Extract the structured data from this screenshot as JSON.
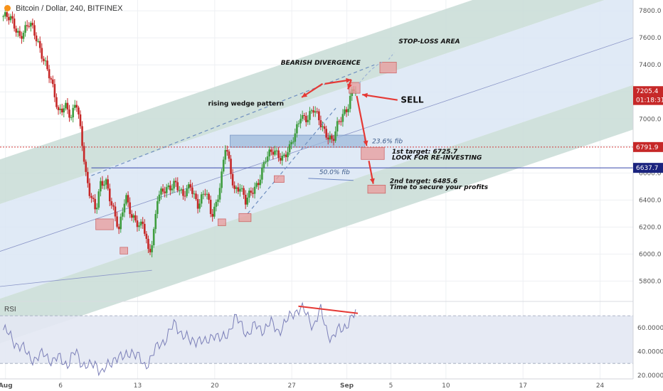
{
  "header": {
    "title": "Bitcoin / Dollar, 240, BITFINEX"
  },
  "colors": {
    "up": "#3f9d3f",
    "down": "#c62828",
    "channel_outer": "#c8dcd6",
    "channel_inner": "#dbe6f5",
    "annotation_red": "#e53935",
    "box_red": "#e8a0a0",
    "fib_box": "#9fbadc",
    "rsi_line": "#7b7fb8",
    "rsi_band": "#e3e8f3"
  },
  "chart_data": {
    "type": "candlestick",
    "x_ticks": [
      "Aug",
      "6",
      "13",
      "20",
      "27",
      "Sep",
      "5",
      "10",
      "17",
      "24"
    ],
    "x_tick_days": [
      1,
      6,
      13,
      20,
      27,
      32,
      36,
      41,
      48,
      55
    ],
    "xlim": [
      0.5,
      58
    ],
    "y_ticks": [
      5800,
      6000,
      6200,
      6400,
      6600,
      6800,
      7000,
      7200,
      7400,
      7600,
      7800
    ],
    "y_tick_labels": [
      "5800.0",
      "6000.0",
      "6200.0",
      "6400.0",
      "6600.0",
      "6800.0",
      "7000.0",
      "7200.0",
      "7400.0",
      "7600.0",
      "7800.0"
    ],
    "ylim": [
      5660,
      7880
    ],
    "price_labels": [
      {
        "value": 7205.4,
        "text": "7205.4",
        "color": "#c62828"
      },
      {
        "value": 7140,
        "text": "01:18:31",
        "color": "#c62828"
      },
      {
        "value": 6791.9,
        "text": "6791.9",
        "color": "#c62828"
      },
      {
        "value": 6637.7,
        "text": "6637.7",
        "color": "#1a237e"
      }
    ],
    "close_path": [
      [
        0.8,
        7760
      ],
      [
        1.5,
        7730
      ],
      [
        2.3,
        7620
      ],
      [
        3.2,
        7700
      ],
      [
        3.9,
        7580
      ],
      [
        4.6,
        7420
      ],
      [
        5.1,
        7280
      ],
      [
        5.8,
        7050
      ],
      [
        6.4,
        7120
      ],
      [
        7.0,
        6990
      ],
      [
        7.4,
        7130
      ],
      [
        7.9,
        6880
      ],
      [
        8.3,
        6600
      ],
      [
        8.6,
        6470
      ],
      [
        9.2,
        6300
      ],
      [
        9.6,
        6510
      ],
      [
        10.1,
        6560
      ],
      [
        10.6,
        6380
      ],
      [
        11.3,
        6160
      ],
      [
        11.9,
        6450
      ],
      [
        12.5,
        6280
      ],
      [
        13.2,
        6180
      ],
      [
        13.5,
        6230
      ],
      [
        14.0,
        6020
      ],
      [
        14.4,
        6120
      ],
      [
        14.8,
        6410
      ],
      [
        15.6,
        6480
      ],
      [
        16.4,
        6540
      ],
      [
        17.1,
        6410
      ],
      [
        17.8,
        6520
      ],
      [
        18.5,
        6360
      ],
      [
        19.2,
        6460
      ],
      [
        19.7,
        6290
      ],
      [
        20.2,
        6400
      ],
      [
        20.6,
        6560
      ],
      [
        21.0,
        6800
      ],
      [
        21.4,
        6620
      ],
      [
        21.8,
        6480
      ],
      [
        22.3,
        6510
      ],
      [
        22.8,
        6380
      ],
      [
        23.4,
        6460
      ],
      [
        23.9,
        6530
      ],
      [
        24.6,
        6700
      ],
      [
        25.4,
        6760
      ],
      [
        26.2,
        6720
      ],
      [
        26.8,
        6770
      ],
      [
        27.3,
        6880
      ],
      [
        27.8,
        7040
      ],
      [
        28.4,
        7000
      ],
      [
        29.0,
        7060
      ],
      [
        29.6,
        6980
      ],
      [
        30.1,
        6900
      ],
      [
        30.7,
        6820
      ],
      [
        31.2,
        6960
      ],
      [
        31.7,
        7050
      ],
      [
        32.1,
        7100
      ],
      [
        32.5,
        7210
      ],
      [
        32.8,
        7205.4
      ]
    ],
    "rsi": {
      "label": "RSI",
      "y_ticks": [
        20,
        40,
        60
      ],
      "y_tick_labels": [
        "20.0000",
        "40.0000",
        "60.0000"
      ],
      "ylim": [
        17,
        82
      ],
      "overbought": 70,
      "oversold": 30,
      "values": [
        [
          0.8,
          58
        ],
        [
          1.5,
          52
        ],
        [
          2.2,
          45
        ],
        [
          3.0,
          38
        ],
        [
          3.8,
          33
        ],
        [
          4.6,
          39
        ],
        [
          5.3,
          31
        ],
        [
          6.0,
          35
        ],
        [
          6.7,
          29
        ],
        [
          7.4,
          40
        ],
        [
          8.0,
          30
        ],
        [
          8.6,
          26
        ],
        [
          9.2,
          31
        ],
        [
          9.8,
          22
        ],
        [
          10.4,
          28
        ],
        [
          11.0,
          37
        ],
        [
          11.7,
          33
        ],
        [
          12.4,
          42
        ],
        [
          13.0,
          35
        ],
        [
          13.6,
          28
        ],
        [
          14.3,
          36
        ],
        [
          15.0,
          46
        ],
        [
          15.7,
          53
        ],
        [
          16.4,
          63
        ],
        [
          17.1,
          55
        ],
        [
          17.8,
          47
        ],
        [
          18.5,
          52
        ],
        [
          19.2,
          45
        ],
        [
          19.9,
          57
        ],
        [
          20.6,
          48
        ],
        [
          21.2,
          56
        ],
        [
          21.8,
          68
        ],
        [
          22.4,
          62
        ],
        [
          23.0,
          55
        ],
        [
          23.7,
          61
        ],
        [
          24.4,
          59
        ],
        [
          25.1,
          63
        ],
        [
          25.8,
          58
        ],
        [
          26.5,
          64
        ],
        [
          27.2,
          74
        ],
        [
          27.8,
          76
        ],
        [
          28.4,
          70
        ],
        [
          29.0,
          62
        ],
        [
          29.6,
          74
        ],
        [
          30.2,
          58
        ],
        [
          30.7,
          50
        ],
        [
          31.2,
          57
        ],
        [
          31.8,
          62
        ],
        [
          32.4,
          66
        ],
        [
          32.8,
          72
        ]
      ],
      "divergence_line": [
        [
          27.6,
          78
        ],
        [
          33.0,
          72
        ]
      ]
    },
    "annotations": [
      {
        "text": "STOP-LOSS AREA",
        "style": "italic-bold",
        "color": "#111111"
      },
      {
        "text": "BEARISH DIVERGENCE",
        "style": "italic-bold",
        "color": "#111111"
      },
      {
        "text": "rising wedge pattern",
        "style": "bold",
        "color": "#111111"
      },
      {
        "text": "SELL",
        "style": "bold",
        "color": "#111111"
      },
      {
        "text": "23.6% fib",
        "style": "italic",
        "color": "#3b5a8a"
      },
      {
        "text": "50.0% fib",
        "style": "italic",
        "color": "#3b5a8a"
      },
      {
        "text": "1st target: 6725.7",
        "style": "italic-bold",
        "color": "#111111"
      },
      {
        "text": "LOOK FOR RE-INVESTING",
        "style": "italic-bold",
        "color": "#111111"
      },
      {
        "text": "2nd target: 6485.6",
        "style": "italic-bold",
        "color": "#111111"
      },
      {
        "text": "Time to secure your profits",
        "style": "italic-bold",
        "color": "#111111"
      }
    ]
  }
}
